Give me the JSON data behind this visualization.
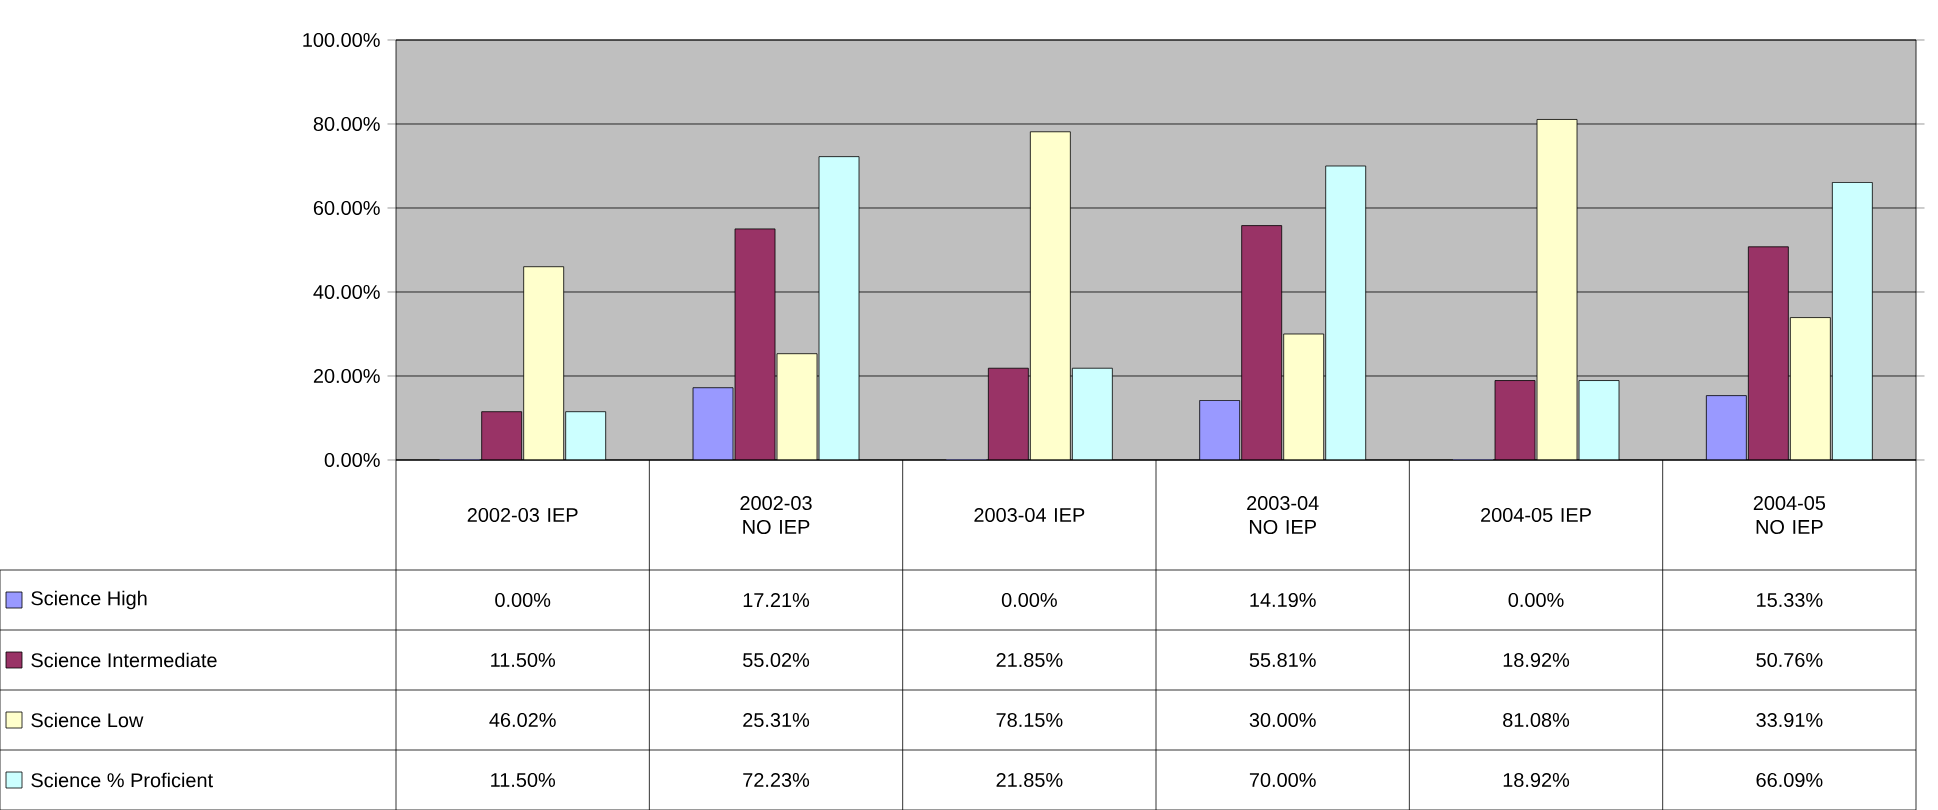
{
  "chart_data": {
    "type": "bar",
    "categories": [
      "2002-03 IEP",
      "2002-03 NO IEP",
      "2003-04 IEP",
      "2003-04 NO IEP",
      "2004-05 IEP",
      "2004-05 NO IEP"
    ],
    "series": [
      {
        "name": "Science High",
        "color": "#9999ff",
        "values": [
          0.0,
          17.21,
          0.0,
          14.19,
          0.0,
          15.33
        ],
        "value_labels": [
          "0.00%",
          "17.21%",
          "0.00%",
          "14.19%",
          "0.00%",
          "15.33%"
        ]
      },
      {
        "name": "Science Intermediate",
        "color": "#993366",
        "values": [
          11.5,
          55.02,
          21.85,
          55.81,
          18.92,
          50.76
        ],
        "value_labels": [
          "11.50%",
          "55.02%",
          "21.85%",
          "55.81%",
          "18.92%",
          "50.76%"
        ]
      },
      {
        "name": "Science Low",
        "color": "#ffffcc",
        "values": [
          46.02,
          25.31,
          78.15,
          30.0,
          81.08,
          33.91
        ],
        "value_labels": [
          "46.02%",
          "25.31%",
          "78.15%",
          "30.00%",
          "81.08%",
          "33.91%"
        ]
      },
      {
        "name": "Science % Proficient",
        "color": "#ccffff",
        "values": [
          11.5,
          72.23,
          21.85,
          70.0,
          18.92,
          66.09
        ],
        "value_labels": [
          "11.50%",
          "72.23%",
          "21.85%",
          "70.00%",
          "18.92%",
          "66.09%"
        ]
      }
    ],
    "ylim": [
      0,
      100
    ],
    "yticks": [
      {
        "value": 0,
        "label": "0.00%"
      },
      {
        "value": 20,
        "label": "20.00%"
      },
      {
        "value": 40,
        "label": "40.00%"
      },
      {
        "value": 60,
        "label": "60.00%"
      },
      {
        "value": 80,
        "label": "80.00%"
      },
      {
        "value": 100,
        "label": "100.00%"
      }
    ],
    "grid": "y",
    "legend": "bottom left"
  }
}
